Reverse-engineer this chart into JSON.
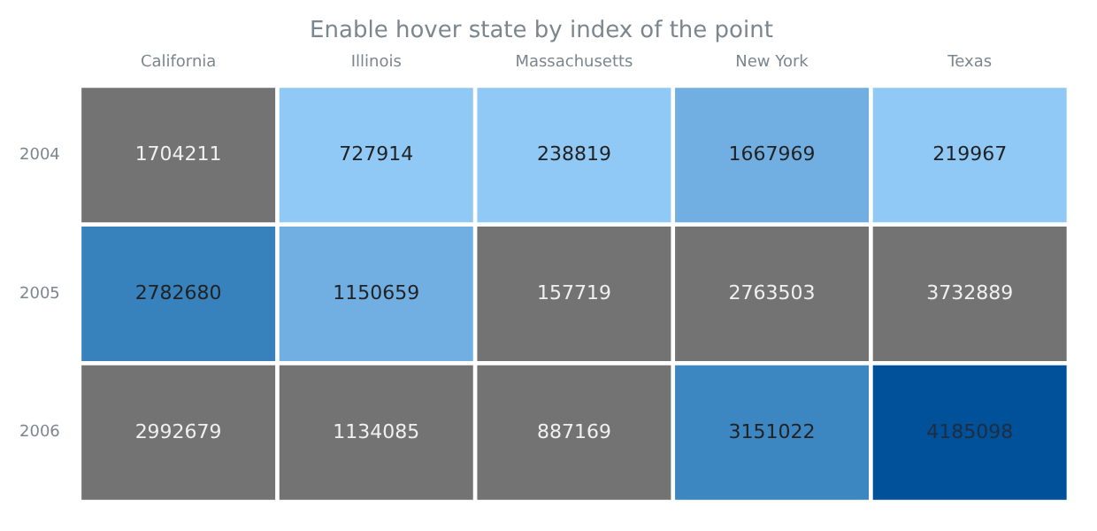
{
  "chart_data": {
    "type": "heatmap",
    "title": "Enable hover state by index of the point",
    "categories": [
      "California",
      "Illinois",
      "Massachusetts",
      "New York",
      "Texas"
    ],
    "y_categories": [
      "2004",
      "2005",
      "2006"
    ],
    "cells": [
      [
        1704211,
        727914,
        238819,
        1667969,
        219967
      ],
      [
        2782680,
        1150659,
        157719,
        2763503,
        3732889
      ],
      [
        2992679,
        1134085,
        887169,
        3151022,
        4185098
      ]
    ],
    "colors": [
      [
        "#737373",
        "#90c8f6",
        "#90c8f6",
        "#71afe2",
        "#90c8f6"
      ],
      [
        "#3782bd",
        "#71afe2",
        "#737373",
        "#737373",
        "#737373"
      ],
      [
        "#737373",
        "#737373",
        "#737373",
        "#3c86c1",
        "#01519a"
      ]
    ],
    "data_labels": true
  }
}
